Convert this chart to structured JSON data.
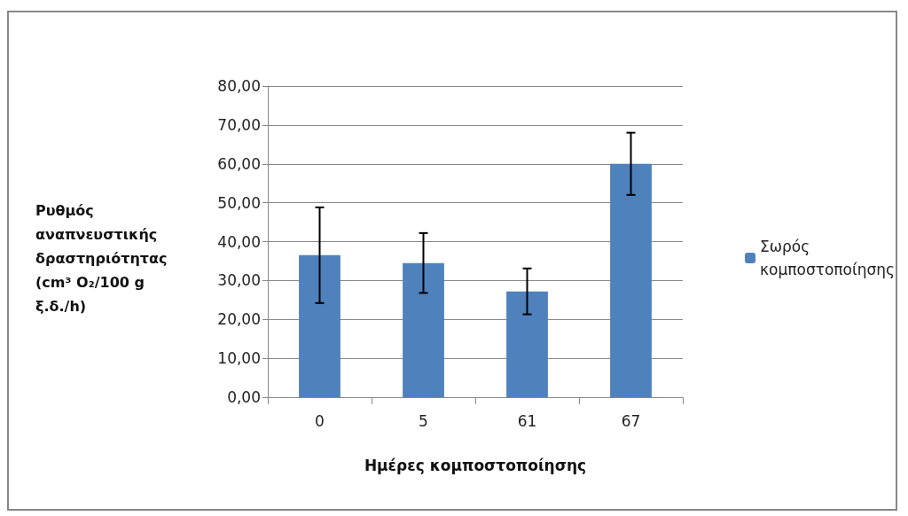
{
  "chart_data": {
    "type": "bar",
    "xlabel": "Ημέρες κομποστοποίησης",
    "ylabel": "Ρυθμός αναπνευστικής δραστηριότητας (cm³ O₂/100 g ξ.δ./h)",
    "categories": [
      "0",
      "5",
      "61",
      "67"
    ],
    "series": [
      {
        "name": "Σωρός κομποστοποίησης",
        "color": "#4f81bd",
        "values": [
          36.5,
          34.5,
          27.2,
          60.0
        ],
        "errors": [
          12.3,
          7.7,
          5.9,
          8.0
        ]
      }
    ],
    "ylim": [
      0,
      80
    ],
    "yticks": [
      {
        "value": 0,
        "label": "0,00"
      },
      {
        "value": 10,
        "label": "10,00"
      },
      {
        "value": 20,
        "label": "20,00"
      },
      {
        "value": 30,
        "label": "30,00"
      },
      {
        "value": 40,
        "label": "40,00"
      },
      {
        "value": 50,
        "label": "50,00"
      },
      {
        "value": 60,
        "label": "60,00"
      },
      {
        "value": 70,
        "label": "70,00"
      },
      {
        "value": 80,
        "label": "80,00"
      }
    ],
    "grid": "y",
    "legend": "right"
  }
}
